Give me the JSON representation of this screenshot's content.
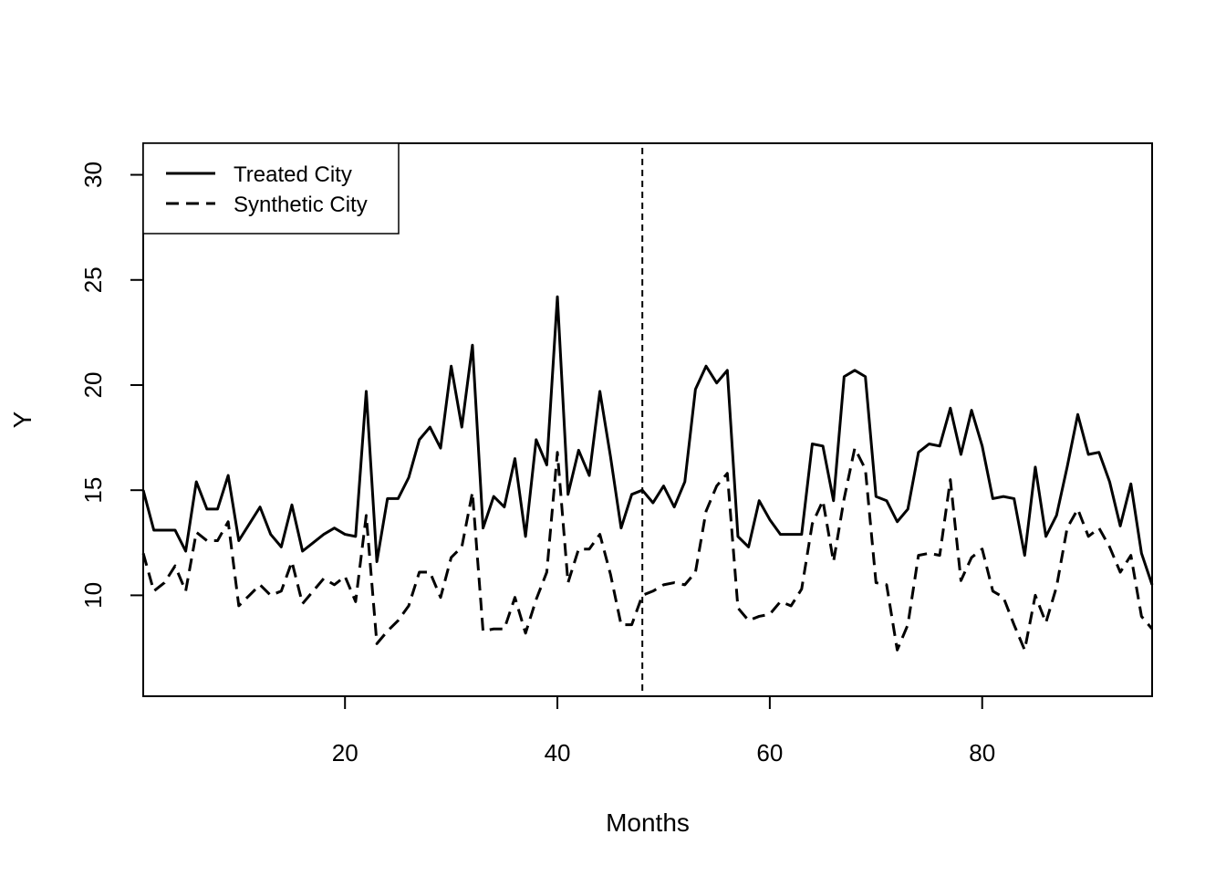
{
  "chart_data": {
    "type": "line",
    "title": "",
    "xlabel": "Months",
    "ylabel": "Y",
    "xlim": [
      1,
      96
    ],
    "ylim": [
      5.2,
      31.5
    ],
    "xticks": [
      20,
      40,
      60,
      80
    ],
    "yticks": [
      10,
      15,
      20,
      25,
      30
    ],
    "grid": false,
    "legend_position": "top-left",
    "intervention_x": 48,
    "x": [
      1,
      2,
      3,
      4,
      5,
      6,
      7,
      8,
      9,
      10,
      11,
      12,
      13,
      14,
      15,
      16,
      17,
      18,
      19,
      20,
      21,
      22,
      23,
      24,
      25,
      26,
      27,
      28,
      29,
      30,
      31,
      32,
      33,
      34,
      35,
      36,
      37,
      38,
      39,
      40,
      41,
      42,
      43,
      44,
      45,
      46,
      47,
      48,
      49,
      50,
      51,
      52,
      53,
      54,
      55,
      56,
      57,
      58,
      59,
      60,
      61,
      62,
      63,
      64,
      65,
      66,
      67,
      68,
      69,
      70,
      71,
      72,
      73,
      74,
      75,
      76,
      77,
      78,
      79,
      80,
      81,
      82,
      83,
      84,
      85,
      86,
      87,
      88,
      89,
      90,
      91,
      92,
      93,
      94,
      95,
      96
    ],
    "series": [
      {
        "name": "Treated City",
        "style": "solid",
        "color": "#000000",
        "values": [
          15.0,
          13.1,
          13.1,
          13.1,
          12.1,
          15.4,
          14.1,
          14.1,
          15.7,
          12.6,
          13.4,
          14.2,
          12.9,
          12.3,
          14.3,
          12.1,
          12.5,
          12.9,
          13.2,
          12.9,
          12.8,
          19.7,
          11.6,
          14.6,
          14.6,
          15.6,
          17.4,
          18.0,
          17.0,
          20.9,
          18.0,
          21.9,
          13.2,
          14.7,
          14.2,
          16.5,
          12.8,
          17.4,
          16.2,
          24.2,
          14.8,
          16.9,
          15.7,
          19.7,
          16.6,
          13.2,
          14.8,
          15.0,
          14.4,
          15.2,
          14.2,
          15.4,
          19.8,
          20.9,
          20.1,
          20.7,
          12.8,
          12.3,
          14.5,
          13.6,
          12.9,
          12.9,
          12.9,
          17.2,
          17.1,
          14.5,
          20.4,
          20.7,
          20.4,
          14.7,
          14.5,
          13.5,
          14.1,
          16.8,
          17.2,
          17.1,
          18.9,
          16.7,
          18.8,
          17.1,
          14.6,
          14.7,
          14.6,
          11.9,
          16.1,
          12.8,
          13.8,
          16.1,
          18.6,
          16.7,
          16.8,
          15.4,
          13.3,
          15.3,
          12.0,
          10.5
        ]
      },
      {
        "name": "Synthetic City",
        "style": "dashed",
        "color": "#000000",
        "values": [
          12.0,
          10.2,
          10.6,
          11.4,
          10.2,
          13.0,
          12.6,
          12.6,
          13.5,
          9.5,
          10.0,
          10.5,
          10.0,
          10.2,
          11.6,
          9.6,
          10.2,
          10.8,
          10.5,
          10.9,
          9.7,
          13.8,
          7.7,
          8.3,
          8.8,
          9.5,
          11.1,
          11.1,
          9.9,
          11.8,
          12.3,
          14.9,
          8.3,
          8.4,
          8.4,
          9.9,
          8.2,
          9.8,
          11.1,
          16.8,
          10.6,
          12.2,
          12.2,
          12.9,
          11.0,
          8.6,
          8.6,
          10.0,
          10.2,
          10.5,
          10.6,
          10.5,
          11.1,
          14.0,
          15.2,
          15.8,
          9.4,
          8.8,
          9.0,
          9.1,
          9.7,
          9.5,
          10.3,
          13.4,
          14.5,
          11.6,
          14.6,
          17.0,
          16.0,
          10.6,
          10.5,
          7.4,
          8.6,
          11.9,
          12.0,
          11.9,
          15.5,
          10.7,
          11.8,
          12.2,
          10.2,
          9.9,
          8.6,
          7.4,
          10.0,
          8.7,
          10.4,
          13.2,
          14.1,
          12.8,
          13.2,
          12.3,
          11.1,
          11.9,
          9.0,
          8.4
        ]
      }
    ]
  }
}
